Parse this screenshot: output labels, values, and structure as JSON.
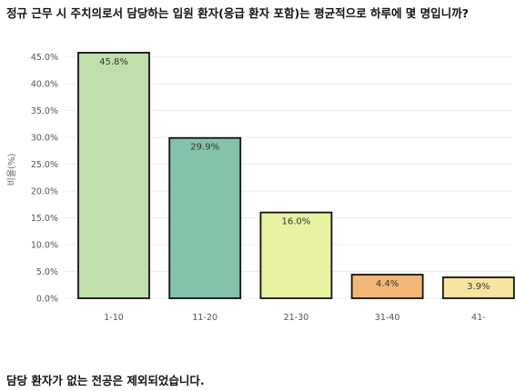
{
  "title": "정규 근무 시 주치의로서 담당하는 입원 환자(응급 환자 포함)는 평균적으로 하루에 몇 명입니까?",
  "footnote": "담당 환자가 없는 전공은 제외되었습니다.",
  "chart_data": {
    "type": "bar",
    "categories": [
      "1-10",
      "11-20",
      "21-30",
      "31-40",
      "41-"
    ],
    "values": [
      45.8,
      29.9,
      16.0,
      4.4,
      3.9
    ],
    "value_labels": [
      "45.8%",
      "29.9%",
      "16.0%",
      "4.4%",
      "3.9%"
    ],
    "colors": [
      "#c0dfaa",
      "#84c2aa",
      "#e8f2a2",
      "#f2b878",
      "#f8e3a0"
    ],
    "ylabel": "비율(%)",
    "xlabel": "",
    "ylim": [
      0,
      48
    ],
    "yticks": [
      0,
      5,
      10,
      15,
      20,
      25,
      30,
      35,
      40,
      45
    ],
    "ytick_labels": [
      "0.0%",
      "5.0%",
      "10.0%",
      "15.0%",
      "20.0%",
      "25.0%",
      "30.0%",
      "35.0%",
      "40.0%",
      "45.0%"
    ],
    "grid": true,
    "legend": "none"
  }
}
